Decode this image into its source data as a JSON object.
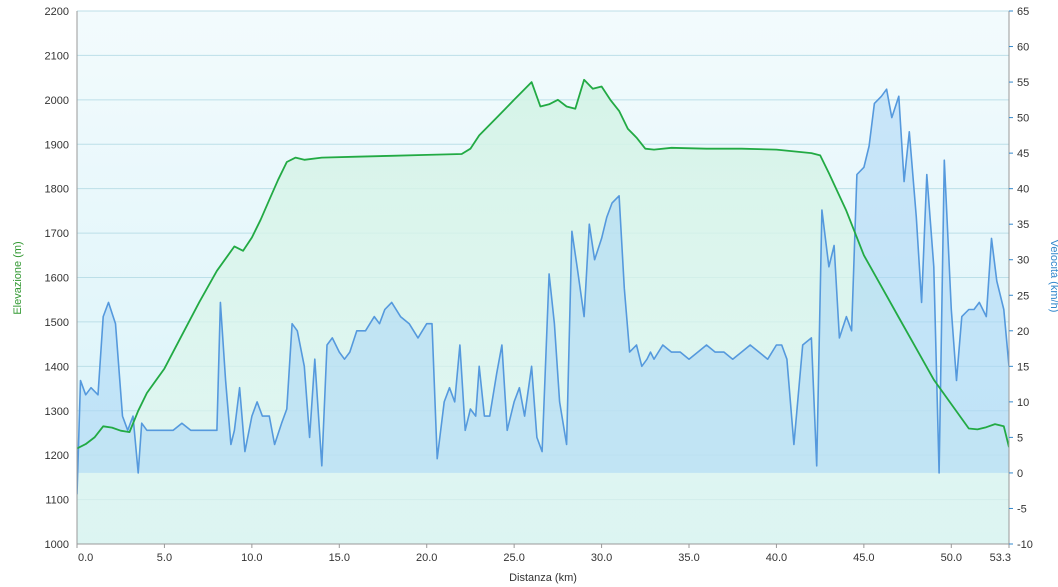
{
  "chart_data": {
    "type": "area",
    "xlabel": "Distanza  (km)",
    "ylabel": "Elevazione (m)",
    "y2label": "Velocità (km/h)",
    "xlim": [
      0,
      53.3
    ],
    "ylim": [
      1000,
      2200
    ],
    "y2lim": [
      -10,
      65
    ],
    "xticks": [
      "0.0",
      "5.0",
      "10.0",
      "15.0",
      "20.0",
      "25.0",
      "30.0",
      "35.0",
      "40.0",
      "45.0",
      "50.0",
      "53.3"
    ],
    "xtick_values": [
      0,
      5,
      10,
      15,
      20,
      25,
      30,
      35,
      40,
      45,
      50,
      53.3
    ],
    "yticks": [
      "1000",
      "1100",
      "1200",
      "1300",
      "1400",
      "1500",
      "1600",
      "1700",
      "1800",
      "1900",
      "2000",
      "2100",
      "2200"
    ],
    "y2ticks": [
      "-10",
      "-5",
      "0",
      "5",
      "10",
      "15",
      "20",
      "25",
      "30",
      "35",
      "40",
      "45",
      "50",
      "55",
      "60",
      "65"
    ],
    "grid": true,
    "colors": {
      "elevation": "#22aa44",
      "speed": "#5599dd",
      "left_axis": "#339933",
      "right_axis": "#3388cc"
    },
    "series": [
      {
        "axis": "left",
        "x": [
          0,
          0.5,
          1,
          1.5,
          2,
          2.5,
          3,
          3.5,
          4,
          5,
          6,
          7,
          8,
          9,
          9.5,
          10,
          10.5,
          11,
          11.5,
          12,
          12.5,
          13,
          14,
          16,
          18,
          20,
          22,
          22.5,
          23,
          24,
          24.5,
          25,
          25.5,
          26,
          26.5,
          27,
          27.5,
          28,
          28.5,
          29,
          29.5,
          30,
          30.5,
          31,
          31.5,
          32,
          32.5,
          33,
          34,
          36,
          38,
          40,
          41,
          42,
          42.5,
          43,
          44,
          45,
          46,
          47,
          48,
          49,
          50,
          51,
          51.5,
          52,
          52.5,
          53,
          53.3
        ],
        "values": [
          1215,
          1225,
          1240,
          1265,
          1262,
          1255,
          1252,
          1300,
          1340,
          1395,
          1470,
          1545,
          1615,
          1670,
          1660,
          1690,
          1730,
          1775,
          1820,
          1860,
          1870,
          1865,
          1870,
          1872,
          1874,
          1876,
          1878,
          1890,
          1920,
          1960,
          1980,
          2000,
          2020,
          2040,
          1985,
          1990,
          2000,
          1985,
          1980,
          2045,
          2025,
          2030,
          2000,
          1975,
          1935,
          1915,
          1890,
          1888,
          1892,
          1890,
          1890,
          1888,
          1884,
          1880,
          1875,
          1835,
          1750,
          1650,
          1580,
          1510,
          1440,
          1370,
          1315,
          1260,
          1258,
          1263,
          1270,
          1265,
          1218
        ]
      },
      {
        "axis": "right",
        "x": [
          0,
          0.2,
          0.5,
          0.8,
          1.2,
          1.5,
          1.8,
          2.2,
          2.6,
          2.9,
          3.2,
          3.5,
          3.7,
          4,
          4.5,
          5,
          5.5,
          6,
          6.5,
          7,
          7.5,
          8,
          8.2,
          8.5,
          8.8,
          9,
          9.3,
          9.6,
          10,
          10.3,
          10.6,
          11,
          11.3,
          11.7,
          12,
          12.3,
          12.6,
          13,
          13.3,
          13.6,
          14,
          14.3,
          14.6,
          15,
          15.3,
          15.6,
          16,
          16.5,
          17,
          17.3,
          17.6,
          18,
          18.5,
          19,
          19.5,
          20,
          20.3,
          20.6,
          21,
          21.3,
          21.6,
          21.9,
          22.2,
          22.5,
          22.8,
          23,
          23.3,
          23.6,
          24,
          24.3,
          24.6,
          25,
          25.3,
          25.6,
          26,
          26.3,
          26.6,
          27,
          27.3,
          27.6,
          28,
          28.3,
          28.6,
          29,
          29.3,
          29.6,
          30,
          30.3,
          30.6,
          31,
          31.3,
          31.6,
          32,
          32.3,
          32.6,
          32.8,
          33,
          33.5,
          34,
          34.5,
          35,
          35.5,
          36,
          36.5,
          37,
          37.5,
          38,
          38.5,
          39,
          39.5,
          40,
          40.3,
          40.6,
          41,
          41.5,
          42,
          42.3,
          42.6,
          43,
          43.3,
          43.6,
          44,
          44.3,
          44.6,
          45,
          45.3,
          45.6,
          46,
          46.3,
          46.6,
          47,
          47.3,
          47.6,
          48,
          48.3,
          48.6,
          49,
          49.3,
          49.6,
          50,
          50.3,
          50.6,
          51,
          51.3,
          51.6,
          52,
          52.3,
          52.6,
          53,
          53.3
        ],
        "values": [
          -3,
          13,
          11,
          12,
          11,
          22,
          24,
          21,
          8,
          6,
          8,
          0,
          7,
          6,
          6,
          6,
          6,
          7,
          6,
          6,
          6,
          6,
          24,
          13,
          4,
          6,
          12,
          3,
          8,
          10,
          8,
          8,
          4,
          7,
          9,
          21,
          20,
          15,
          5,
          16,
          1,
          18,
          19,
          17,
          16,
          17,
          20,
          20,
          22,
          21,
          23,
          24,
          22,
          21,
          19,
          21,
          21,
          2,
          10,
          12,
          10,
          18,
          6,
          9,
          8,
          15,
          8,
          8,
          14,
          18,
          6,
          10,
          12,
          8,
          15,
          5,
          3,
          28,
          21,
          10,
          4,
          34,
          29,
          22,
          35,
          30,
          33,
          36,
          38,
          39,
          26,
          17,
          18,
          15,
          16,
          17,
          16,
          18,
          17,
          17,
          16,
          17,
          18,
          17,
          17,
          16,
          17,
          18,
          17,
          16,
          18,
          18,
          16,
          4,
          18,
          19,
          1,
          37,
          29,
          32,
          19,
          22,
          20,
          42,
          43,
          46,
          52,
          53,
          54,
          50,
          53,
          41,
          48,
          36,
          24,
          42,
          29,
          0,
          44,
          23,
          13,
          22,
          23,
          23,
          24,
          22,
          33,
          27,
          23,
          15
        ]
      }
    ]
  }
}
